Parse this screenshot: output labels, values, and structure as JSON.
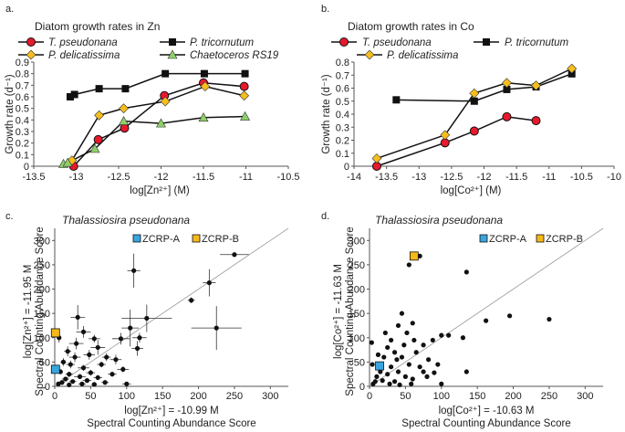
{
  "chart_data": [
    {
      "id": "a",
      "type": "line",
      "panel_label": "a.",
      "title": "Diatom growth rates in Zn",
      "xlabel": "log[Zn²⁺] (M)",
      "ylabel": "Growth rate (d⁻¹)",
      "xlim": [
        -13.5,
        -10.5
      ],
      "ylim": [
        0,
        0.9
      ],
      "xticks": [
        -13.5,
        -13,
        -12.5,
        -12,
        -11.5,
        -11,
        -10.5
      ],
      "xtick_labels": [
        "-13.5",
        "-13",
        "-12.5",
        "-12",
        "-11.5",
        "-11",
        "-10.5"
      ],
      "yticks": [
        0,
        0.1,
        0.2,
        0.3,
        0.4,
        0.5,
        0.6,
        0.7,
        0.8,
        0.9
      ],
      "ytick_labels": [
        "0",
        "0.1",
        "0.2",
        "0.3",
        "0.4",
        "0.5",
        "0.6",
        "0.7",
        "0.8",
        "0.9"
      ],
      "series": [
        {
          "name": "T. pseudonana",
          "italic": true,
          "marker": "circle",
          "color": "#e8192c",
          "x": [
            -13.03,
            -12.74,
            -12.43,
            -11.96,
            -11.5,
            -11.02
          ],
          "y": [
            0.0,
            0.23,
            0.33,
            0.61,
            0.72,
            0.69
          ]
        },
        {
          "name": "P. tricornutum",
          "italic": true,
          "marker": "square",
          "color": "#111111",
          "x": [
            -13.07,
            -13.02,
            -12.73,
            -12.42,
            -11.95,
            -11.49,
            -11.01
          ],
          "y": [
            0.6,
            0.62,
            0.67,
            0.67,
            0.8,
            0.8,
            0.8
          ]
        },
        {
          "name": "P. delicatissima",
          "italic": true,
          "marker": "diamond",
          "color": "#f6bd1d",
          "x": [
            -13.05,
            -12.73,
            -12.44,
            -11.95,
            -11.48,
            -11.02
          ],
          "y": [
            0.05,
            0.44,
            0.5,
            0.56,
            0.69,
            0.61
          ]
        },
        {
          "name": "Chaetoceros RS19",
          "italic": true,
          "marker": "triangle",
          "color": "#8fcf6a",
          "x": [
            -13.15,
            -13.1,
            -12.78,
            -12.44,
            -12.0,
            -11.5,
            -11.01
          ],
          "y": [
            0.02,
            0.03,
            0.15,
            0.39,
            0.37,
            0.42,
            0.43
          ]
        }
      ]
    },
    {
      "id": "b",
      "type": "line",
      "panel_label": "b.",
      "title": "Diatom growth rates in Co",
      "xlabel": "log[Co²⁺] (M)",
      "ylabel": "Growth rate (d⁻¹)",
      "xlim": [
        -14,
        -10
      ],
      "ylim": [
        0,
        0.8
      ],
      "xticks": [
        -14,
        -13.5,
        -13,
        -12.5,
        -12,
        -11.5,
        -11,
        -10.5,
        -10
      ],
      "xtick_labels": [
        "-14",
        "-13.5",
        "-13",
        "-12.5",
        "-12",
        "-11.5",
        "-11",
        "-10.5",
        "-10"
      ],
      "yticks": [
        0,
        0.1,
        0.2,
        0.3,
        0.4,
        0.5,
        0.6,
        0.7,
        0.8
      ],
      "ytick_labels": [
        "0",
        "0.1",
        "0.2",
        "0.3",
        "0.4",
        "0.5",
        "0.6",
        "0.7",
        "0.8"
      ],
      "series": [
        {
          "name": "T. pseudonana",
          "italic": true,
          "marker": "circle",
          "color": "#e8192c",
          "x": [
            -13.65,
            -12.6,
            -12.15,
            -11.65,
            -11.2
          ],
          "y": [
            0.0,
            0.18,
            0.27,
            0.38,
            0.35
          ]
        },
        {
          "name": "P. tricornutum",
          "italic": true,
          "marker": "square",
          "color": "#111111",
          "x": [
            -13.35,
            -12.15,
            -11.65,
            -11.2,
            -10.65
          ],
          "y": [
            0.51,
            0.5,
            0.59,
            0.61,
            0.71
          ]
        },
        {
          "name": "P. delicatissima",
          "italic": true,
          "marker": "diamond",
          "color": "#f6bd1d",
          "x": [
            -13.65,
            -12.6,
            -12.15,
            -11.65,
            -11.2,
            -10.65
          ],
          "y": [
            0.06,
            0.24,
            0.56,
            0.64,
            0.62,
            0.75
          ]
        }
      ]
    },
    {
      "id": "c",
      "type": "scatter",
      "panel_label": "c.",
      "title": "Thalassiosira pseudonana",
      "xlabel_line1": "log[Zn²⁺] = -10.99 M",
      "xlabel_line2": "Spectral Counting Abundance Score",
      "ylabel_line1": "log[Zn²⁺] = -11.95 M",
      "ylabel_line2": "Spectral Counting Abundance Score",
      "xlim": [
        0,
        325
      ],
      "ylim": [
        0,
        325
      ],
      "xticks": [
        0,
        50,
        100,
        150,
        200,
        250,
        300
      ],
      "yticks": [
        0,
        50,
        100,
        150,
        200,
        250,
        300
      ],
      "tick_labels": [
        "0",
        "50",
        "100",
        "150",
        "200",
        "250",
        "300"
      ],
      "identity_line": true,
      "legend": [
        {
          "name": "ZCRP-A",
          "color": "#39a6e0"
        },
        {
          "name": "ZCRP-B",
          "color": "#f6b91a"
        }
      ],
      "highlight_points": [
        {
          "name": "ZCRP-A",
          "x": 1,
          "y": 35,
          "color": "#39a6e0"
        },
        {
          "name": "ZCRP-B",
          "x": 1,
          "y": 110,
          "color": "#f6b91a"
        }
      ],
      "points": [
        {
          "x": 250,
          "y": 271,
          "xerr": 20,
          "yerr": 0
        },
        {
          "x": 110,
          "y": 238,
          "xerr": 9,
          "yerr": 35
        },
        {
          "x": 215,
          "y": 213,
          "xerr": 9,
          "yerr": 28
        },
        {
          "x": 225,
          "y": 120,
          "xerr": 35,
          "yerr": 45
        },
        {
          "x": 190,
          "y": 177,
          "xerr": 5,
          "yerr": 6
        },
        {
          "x": 128,
          "y": 140,
          "xerr": 35,
          "yerr": 28
        },
        {
          "x": 105,
          "y": 120,
          "xerr": 12,
          "yerr": 38
        },
        {
          "x": 118,
          "y": 100,
          "xerr": 10,
          "yerr": 10
        },
        {
          "x": 115,
          "y": 78,
          "xerr": 8,
          "yerr": 15
        },
        {
          "x": 92,
          "y": 98,
          "xerr": 12,
          "yerr": 12
        },
        {
          "x": 85,
          "y": 55,
          "xerr": 8,
          "yerr": 10
        },
        {
          "x": 32,
          "y": 142,
          "xerr": 10,
          "yerr": 25
        },
        {
          "x": 40,
          "y": 112,
          "xerr": 10,
          "yerr": 12
        },
        {
          "x": 55,
          "y": 98,
          "xerr": 8,
          "yerr": 8
        },
        {
          "x": 60,
          "y": 80,
          "xerr": 10,
          "yerr": 15
        },
        {
          "x": 48,
          "y": 65,
          "xerr": 8,
          "yerr": 10
        },
        {
          "x": 72,
          "y": 60,
          "xerr": 6,
          "yerr": 8
        },
        {
          "x": 65,
          "y": 45,
          "xerr": 6,
          "yerr": 6
        },
        {
          "x": 30,
          "y": 88,
          "xerr": 10,
          "yerr": 12
        },
        {
          "x": 28,
          "y": 60,
          "xerr": 8,
          "yerr": 10
        },
        {
          "x": 22,
          "y": 45,
          "xerr": 6,
          "yerr": 8
        },
        {
          "x": 40,
          "y": 38,
          "xerr": 8,
          "yerr": 6
        },
        {
          "x": 50,
          "y": 28,
          "xerr": 6,
          "yerr": 6
        },
        {
          "x": 35,
          "y": 20,
          "xerr": 8,
          "yerr": 5
        },
        {
          "x": 20,
          "y": 25,
          "xerr": 5,
          "yerr": 5
        },
        {
          "x": 15,
          "y": 15,
          "xerr": 5,
          "yerr": 4
        },
        {
          "x": 10,
          "y": 8,
          "xerr": 4,
          "yerr": 4
        },
        {
          "x": 5,
          "y": 5,
          "xerr": 3,
          "yerr": 3
        },
        {
          "x": 25,
          "y": 10,
          "xerr": 5,
          "yerr": 4
        },
        {
          "x": 45,
          "y": 12,
          "xerr": 6,
          "yerr": 4
        },
        {
          "x": 60,
          "y": 18,
          "xerr": 6,
          "yerr": 5
        },
        {
          "x": 80,
          "y": 25,
          "xerr": 6,
          "yerr": 5
        },
        {
          "x": 95,
          "y": 35,
          "xerr": 8,
          "yerr": 6
        },
        {
          "x": 8,
          "y": 30,
          "xerr": 3,
          "yerr": 5
        },
        {
          "x": 12,
          "y": 50,
          "xerr": 4,
          "yerr": 8
        },
        {
          "x": 18,
          "y": 72,
          "xerr": 5,
          "yerr": 10
        },
        {
          "x": 6,
          "y": 100,
          "xerr": 3,
          "yerr": 10
        },
        {
          "x": 38,
          "y": 5,
          "xerr": 5,
          "yerr": 3
        },
        {
          "x": 70,
          "y": 8,
          "xerr": 5,
          "yerr": 3
        },
        {
          "x": 100,
          "y": 5,
          "xerr": 6,
          "yerr": 3
        },
        {
          "x": 55,
          "y": 4,
          "xerr": 4,
          "yerr": 2
        },
        {
          "x": 20,
          "y": 3,
          "xerr": 3,
          "yerr": 2
        }
      ]
    },
    {
      "id": "d",
      "type": "scatter",
      "panel_label": "d.",
      "title": "Thalassiosira pseudonana",
      "xlabel_line1": "log[Co²⁺] = -10.63 M",
      "xlabel_line2": "Spectral Counting Abundance Score",
      "ylabel_line1": "log[Co²⁺] = -11.63 M",
      "ylabel_line2": "Spectral Counting Abundance Score",
      "xlim": [
        0,
        325
      ],
      "ylim": [
        0,
        325
      ],
      "xticks": [
        0,
        50,
        100,
        150,
        200,
        250,
        300
      ],
      "yticks": [
        0,
        50,
        100,
        150,
        200,
        250,
        300
      ],
      "tick_labels": [
        "0",
        "50",
        "100",
        "150",
        "200",
        "250",
        "300"
      ],
      "identity_line": true,
      "legend": [
        {
          "name": "ZCRP-A",
          "color": "#39a6e0"
        },
        {
          "name": "ZCRP-B",
          "color": "#f6b91a"
        }
      ],
      "highlight_points": [
        {
          "name": "ZCRP-A",
          "x": 14,
          "y": 42,
          "color": "#39a6e0"
        },
        {
          "name": "ZCRP-B",
          "x": 62,
          "y": 268,
          "color": "#f6b91a"
        }
      ],
      "points": [
        {
          "x": 70,
          "y": 268
        },
        {
          "x": 55,
          "y": 250
        },
        {
          "x": 135,
          "y": 235
        },
        {
          "x": 195,
          "y": 145
        },
        {
          "x": 250,
          "y": 138
        },
        {
          "x": 162,
          "y": 135
        },
        {
          "x": 110,
          "y": 105
        },
        {
          "x": 100,
          "y": 105
        },
        {
          "x": 130,
          "y": 100
        },
        {
          "x": 88,
          "y": 95
        },
        {
          "x": 75,
          "y": 85
        },
        {
          "x": 60,
          "y": 130
        },
        {
          "x": 45,
          "y": 150
        },
        {
          "x": 40,
          "y": 125
        },
        {
          "x": 52,
          "y": 110
        },
        {
          "x": 65,
          "y": 70
        },
        {
          "x": 82,
          "y": 55
        },
        {
          "x": 95,
          "y": 45
        },
        {
          "x": 135,
          "y": 30
        },
        {
          "x": 100,
          "y": 5
        },
        {
          "x": 30,
          "y": 95
        },
        {
          "x": 25,
          "y": 80
        },
        {
          "x": 35,
          "y": 70
        },
        {
          "x": 20,
          "y": 60
        },
        {
          "x": 45,
          "y": 60
        },
        {
          "x": 55,
          "y": 45
        },
        {
          "x": 70,
          "y": 40
        },
        {
          "x": 30,
          "y": 40
        },
        {
          "x": 15,
          "y": 30
        },
        {
          "x": 40,
          "y": 30
        },
        {
          "x": 25,
          "y": 25
        },
        {
          "x": 50,
          "y": 20
        },
        {
          "x": 60,
          "y": 15
        },
        {
          "x": 10,
          "y": 20
        },
        {
          "x": 8,
          "y": 10
        },
        {
          "x": 18,
          "y": 12
        },
        {
          "x": 35,
          "y": 10
        },
        {
          "x": 5,
          "y": 5
        },
        {
          "x": 28,
          "y": 5
        },
        {
          "x": 80,
          "y": 20
        },
        {
          "x": 75,
          "y": 30
        },
        {
          "x": 90,
          "y": 28
        },
        {
          "x": 48,
          "y": 85
        },
        {
          "x": 62,
          "y": 95
        },
        {
          "x": 22,
          "y": 110
        },
        {
          "x": 38,
          "y": 55
        },
        {
          "x": 12,
          "y": 65
        },
        {
          "x": 4,
          "y": 45
        },
        {
          "x": 3,
          "y": 90
        },
        {
          "x": 58,
          "y": 5
        },
        {
          "x": 42,
          "y": 3
        }
      ]
    }
  ]
}
